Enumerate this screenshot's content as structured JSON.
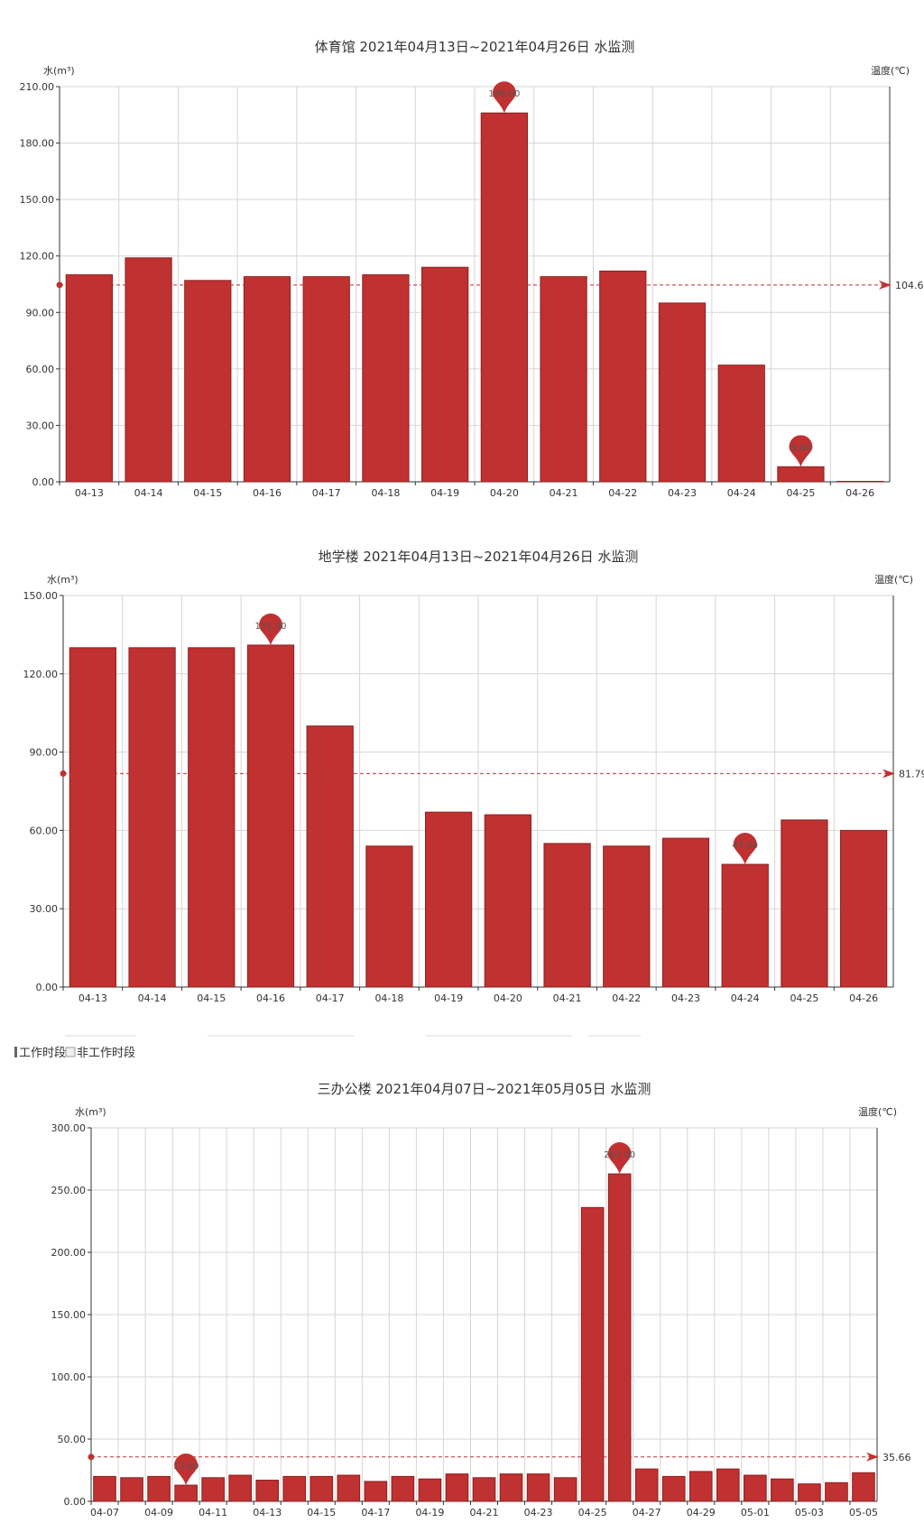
{
  "legend": {
    "items": [
      "工作时段",
      "非工作时段"
    ]
  },
  "chart_data": [
    {
      "type": "bar",
      "title": "体育馆 2021年04月13日~2021年04月26日 水监测",
      "ylabel": "水(m³)",
      "y2label": "温度(℃)",
      "ylim": [
        0,
        210
      ],
      "yticks": [
        "0.00",
        "30.00",
        "60.00",
        "90.00",
        "120.00",
        "150.00",
        "180.00",
        "210.00"
      ],
      "categories": [
        "04-13",
        "04-14",
        "04-15",
        "04-16",
        "04-17",
        "04-18",
        "04-19",
        "04-20",
        "04-21",
        "04-22",
        "04-23",
        "04-24",
        "04-25",
        "04-26"
      ],
      "xtick_every": 1,
      "values": [
        110,
        119,
        107,
        109,
        109,
        110,
        114,
        196,
        109,
        112,
        95,
        62,
        8,
        0
      ],
      "mark_points": [
        {
          "index": 7,
          "label": "196.00"
        },
        {
          "index": 12,
          "label": "8.00"
        }
      ],
      "average": 104.6,
      "average_label": "104.6"
    },
    {
      "type": "bar",
      "title": "地学楼 2021年04月13日~2021年04月26日 水监测",
      "ylabel": "水(m³)",
      "y2label": "温度(℃)",
      "ylim": [
        0,
        150
      ],
      "yticks": [
        "0.00",
        "30.00",
        "60.00",
        "90.00",
        "120.00",
        "150.00"
      ],
      "categories": [
        "04-13",
        "04-14",
        "04-15",
        "04-16",
        "04-17",
        "04-18",
        "04-19",
        "04-20",
        "04-21",
        "04-22",
        "04-23",
        "04-24",
        "04-25",
        "04-26"
      ],
      "xtick_every": 1,
      "values": [
        130,
        130,
        130,
        131,
        100,
        54,
        67,
        66,
        55,
        54,
        57,
        47,
        64,
        60
      ],
      "mark_points": [
        {
          "index": 3,
          "label": "131.00"
        },
        {
          "index": 11,
          "label": "47.00"
        }
      ],
      "average": 81.79,
      "average_label": "81.79"
    },
    {
      "type": "bar",
      "title": "三办公楼 2021年04月07日~2021年05月05日 水监测",
      "ylabel": "水(m³)",
      "y2label": "温度(℃)",
      "ylim": [
        0,
        300
      ],
      "yticks": [
        "0.00",
        "50.00",
        "100.00",
        "150.00",
        "200.00",
        "250.00",
        "300.00"
      ],
      "categories": [
        "04-07",
        "04-08",
        "04-09",
        "04-10",
        "04-11",
        "04-12",
        "04-13",
        "04-14",
        "04-15",
        "04-16",
        "04-17",
        "04-18",
        "04-19",
        "04-20",
        "04-21",
        "04-22",
        "04-23",
        "04-24",
        "04-25",
        "04-26",
        "04-27",
        "04-28",
        "04-29",
        "04-30",
        "05-01",
        "05-02",
        "05-03",
        "05-04",
        "05-05"
      ],
      "xtick_every": 2,
      "values": [
        20,
        19,
        20,
        13,
        19,
        21,
        17,
        20,
        20,
        21,
        16,
        20,
        18,
        22,
        19,
        22,
        22,
        19,
        236,
        263,
        26,
        20,
        24,
        26,
        21,
        18,
        14,
        15,
        23
      ],
      "mark_points": [
        {
          "index": 3,
          "label": "13.00"
        },
        {
          "index": 19,
          "label": "263.00"
        }
      ],
      "average": 35.66,
      "average_label": "35.66"
    }
  ]
}
